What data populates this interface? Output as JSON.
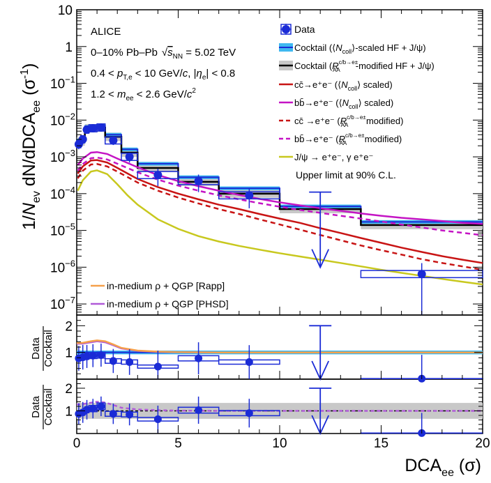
{
  "chart_data": {
    "type": "scatter",
    "experiment": "ALICE",
    "annotations": {
      "system": "0–10% Pb–Pb",
      "energy_prefix": "s",
      "energy_sub": "NN",
      "energy_value": " = 5.02 TeV",
      "pt_cut_a": "0.4 < ",
      "pt_cut_p": "p",
      "pt_cut_sub": "T,e",
      "pt_cut_b": " < 10 GeV/",
      "pt_cut_c": "c",
      "pt_cut_d": ", |",
      "pt_cut_eta": "η",
      "pt_cut_eta_sub": "e",
      "pt_cut_e": "| < 0.8",
      "mass_cut_a": "1.2 < ",
      "mass_cut_m": "m",
      "mass_cut_sub": "ee",
      "mass_cut_b": " < 2.6 GeV/",
      "mass_cut_c": "c",
      "mass_cut_sup": "2",
      "upper_limit": "Upper limit at 90% C.L."
    },
    "axes": {
      "xlabel_main": "DCA",
      "xlabel_sub": "ee",
      "xlabel_unit": " (σ)",
      "ylabel": "1/N_ev dN/dDCA_ee (σ^-1)",
      "ylabel_parts": [
        "1/",
        "N",
        "ev",
        " dN/dDCA",
        "ee",
        " (σ",
        "-1",
        ")"
      ],
      "xlim": [
        0,
        20
      ],
      "xticks": [
        "0",
        "5",
        "10",
        "15",
        "20"
      ],
      "ylim": [
        5e-08,
        10
      ],
      "ylog": true,
      "yticks": [
        {
          "b": "10",
          "e": ""
        },
        {
          "b": "1",
          "e": ""
        },
        {
          "b": "10",
          "e": "−1"
        },
        {
          "b": "10",
          "e": "−2"
        },
        {
          "b": "10",
          "e": "−3"
        },
        {
          "b": "10",
          "e": "−4"
        },
        {
          "b": "10",
          "e": "−5"
        },
        {
          "b": "10",
          "e": "−6"
        },
        {
          "b": "10",
          "e": "−7"
        }
      ],
      "ratio_ylabel_top": "Data",
      "ratio_ylabel_bottom": "Cocktail",
      "ratio_ylim": [
        0,
        2.4
      ],
      "ratio_yticks": [
        "1",
        "2"
      ]
    },
    "legend": {
      "data": "Data",
      "cocktail_ncoll_a": "Cocktail (⟨",
      "cocktail_ncoll_n": "N",
      "cocktail_ncoll_sub": "coll",
      "cocktail_ncoll_b": "⟩-scaled HF + J/ψ)",
      "cocktail_raa_a": "Cocktail (",
      "cocktail_raa_r": "R",
      "cocktail_raa_sup": "c/b→e±",
      "cocktail_raa_sub": "AA",
      "cocktail_raa_b": "-modified HF + J/ψ)",
      "cc_ncoll_a": "cc̄→e⁺e⁻ (⟨",
      "cc_ncoll_n": "N",
      "cc_ncoll_sub": "coll",
      "cc_ncoll_b": "⟩ scaled)",
      "bb_ncoll_a": "bb̄→e⁺e⁻ (⟨",
      "bb_ncoll_n": "N",
      "bb_ncoll_sub": "coll",
      "bb_ncoll_b": "⟩ scaled)",
      "cc_raa_a": "cc̄ →e⁺e⁻ (",
      "cc_raa_r": "R",
      "cc_raa_sup": "c/b→e±",
      "cc_raa_sub": "AA",
      "cc_raa_b": " modified)",
      "bb_raa_a": "bb̄→e⁺e⁻ (",
      "bb_raa_r": "R",
      "bb_raa_sup": "c/b→e±",
      "bb_raa_sub": "AA",
      "bb_raa_b": " modified)",
      "jpsi": "J/ψ → e⁺e⁻, γ e⁺e⁻",
      "rapp": "in-medium ρ + QGP [Rapp]",
      "phsd": "in-medium ρ + QGP [PHSD]"
    },
    "colors": {
      "data": "#1a2bd6",
      "cocktail_ncoll_band": "#3fb8f0",
      "cocktail_raa_band": "#c8c8c8",
      "cc": "#c81414",
      "bb": "#c414c4",
      "jpsi": "#c8c81e",
      "rapp": "#f5a04a",
      "phsd": "#b05ad8"
    },
    "data_points": [
      {
        "x": 0.1,
        "xl": 0.0,
        "xh": 0.2,
        "y": 0.0022,
        "ey": 0.0006,
        "r": 0.78,
        "r2": 0.87
      },
      {
        "x": 0.3,
        "xl": 0.2,
        "xh": 0.4,
        "y": 0.003,
        "ey": 0.0008,
        "r": 0.82,
        "r2": 0.93
      },
      {
        "x": 0.5,
        "xl": 0.4,
        "xh": 0.6,
        "y": 0.0055,
        "ey": 0.0012,
        "r": 0.85,
        "r2": 1.05
      },
      {
        "x": 0.8,
        "xl": 0.6,
        "xh": 1.0,
        "y": 0.006,
        "ey": 0.0013,
        "r": 0.88,
        "r2": 1.1
      },
      {
        "x": 1.2,
        "xl": 1.0,
        "xh": 1.4,
        "y": 0.0063,
        "ey": 0.0014,
        "r": 0.9,
        "r2": 1.2
      },
      {
        "x": 1.8,
        "xl": 1.4,
        "xh": 2.2,
        "y": 0.0028,
        "ey": 0.0007,
        "r": 0.68,
        "r2": 0.87
      },
      {
        "x": 2.6,
        "xl": 2.2,
        "xh": 3.0,
        "y": 0.001,
        "ey": 0.0003,
        "r": 0.64,
        "r2": 0.84
      },
      {
        "x": 4.0,
        "xl": 3.0,
        "xh": 5.0,
        "y": 0.00032,
        "ey": 0.00016,
        "r": 0.47,
        "r2": 0.63
      },
      {
        "x": 6.0,
        "xl": 5.0,
        "xh": 7.0,
        "y": 0.00022,
        "ey": 0.00011,
        "r": 0.78,
        "r2": 1.03
      },
      {
        "x": 8.5,
        "xl": 7.0,
        "xh": 10.0,
        "y": 9e-05,
        "ey": 5e-05,
        "r": 0.64,
        "r2": 0.9
      },
      {
        "x": 17.0,
        "xl": 14.0,
        "xh": 20.0,
        "y": 6.5e-07,
        "ey": 6.4e-07,
        "r": 0.02,
        "r2": 0.02
      }
    ],
    "upper_limit_point": {
      "x": 12.0,
      "y": 0.00011,
      "ratio": 2.0
    },
    "cocktail_bins": [
      {
        "xl": 0.0,
        "xh": 0.4,
        "y": 0.0028
      },
      {
        "xl": 0.4,
        "xh": 1.0,
        "y": 0.0065
      },
      {
        "xl": 1.0,
        "xh": 1.4,
        "y": 0.007
      },
      {
        "xl": 1.4,
        "xh": 2.2,
        "y": 0.004
      },
      {
        "xl": 2.2,
        "xh": 3.0,
        "y": 0.0016
      },
      {
        "xl": 3.0,
        "xh": 5.0,
        "y": 0.00065
      },
      {
        "xl": 5.0,
        "xh": 7.0,
        "y": 0.00028
      },
      {
        "xl": 7.0,
        "xh": 10.0,
        "y": 0.00014
      },
      {
        "xl": 10.0,
        "xh": 14.0,
        "y": 4.5e-05
      },
      {
        "xl": 14.0,
        "xh": 20.0,
        "y": 1.7e-05
      }
    ],
    "cocktail_raa_bins": [
      {
        "xl": 0.0,
        "xh": 0.4,
        "y": 0.0026
      },
      {
        "xl": 0.4,
        "xh": 1.0,
        "y": 0.006
      },
      {
        "xl": 1.0,
        "xh": 1.4,
        "y": 0.0062
      },
      {
        "xl": 1.4,
        "xh": 2.2,
        "y": 0.0035
      },
      {
        "xl": 2.2,
        "xh": 3.0,
        "y": 0.0013
      },
      {
        "xl": 3.0,
        "xh": 5.0,
        "y": 0.0005
      },
      {
        "xl": 5.0,
        "xh": 7.0,
        "y": 0.00021
      },
      {
        "xl": 7.0,
        "xh": 10.0,
        "y": 0.0001
      },
      {
        "xl": 10.0,
        "xh": 14.0,
        "y": 3.8e-05
      },
      {
        "xl": 14.0,
        "xh": 20.0,
        "y": 1.4e-05
      }
    ],
    "curves": {
      "cc_ncoll": [
        [
          0.05,
          0.00035
        ],
        [
          0.3,
          0.00055
        ],
        [
          0.7,
          0.0008
        ],
        [
          1.0,
          0.00082
        ],
        [
          1.5,
          0.0007
        ],
        [
          2,
          0.0005
        ],
        [
          3,
          0.00025
        ],
        [
          4,
          0.00015
        ],
        [
          5,
          0.0001
        ],
        [
          6,
          7e-05
        ],
        [
          7,
          5e-05
        ],
        [
          8,
          3.8e-05
        ],
        [
          9,
          2.8e-05
        ],
        [
          10,
          2.1e-05
        ],
        [
          11,
          1.6e-05
        ],
        [
          12,
          1.15e-05
        ],
        [
          13,
          8.5e-06
        ],
        [
          14,
          6.2e-06
        ],
        [
          15,
          4.6e-06
        ],
        [
          16,
          3.4e-06
        ],
        [
          17,
          2.6e-06
        ],
        [
          18,
          2e-06
        ],
        [
          19,
          1.6e-06
        ],
        [
          20,
          1.3e-06
        ]
      ],
      "cc_raa": [
        [
          0.05,
          0.00026
        ],
        [
          0.3,
          0.00042
        ],
        [
          0.7,
          0.00062
        ],
        [
          1.0,
          0.00064
        ],
        [
          1.5,
          0.00055
        ],
        [
          2,
          0.0004
        ],
        [
          3,
          0.0002
        ],
        [
          4,
          0.00012
        ],
        [
          5,
          7.8e-05
        ],
        [
          6,
          5.4e-05
        ],
        [
          7,
          3.8e-05
        ],
        [
          8,
          2.8e-05
        ],
        [
          9,
          2e-05
        ],
        [
          10,
          1.45e-05
        ],
        [
          11,
          1.05e-05
        ],
        [
          12,
          7.5e-06
        ],
        [
          13,
          5.4e-06
        ],
        [
          14,
          3.9e-06
        ],
        [
          15,
          2.9e-06
        ],
        [
          16,
          2.2e-06
        ],
        [
          17,
          1.65e-06
        ],
        [
          18,
          1.3e-06
        ],
        [
          19,
          1.05e-06
        ],
        [
          20,
          8.5e-07
        ]
      ],
      "bb_ncoll": [
        [
          0.05,
          0.0006
        ],
        [
          0.3,
          0.0009
        ],
        [
          0.7,
          0.0013
        ],
        [
          1.0,
          0.00135
        ],
        [
          1.5,
          0.0012
        ],
        [
          2,
          0.0009
        ],
        [
          3,
          0.00052
        ],
        [
          4,
          0.00032
        ],
        [
          5,
          0.00022
        ],
        [
          6,
          0.00016
        ],
        [
          7,
          0.00012
        ],
        [
          8,
          9.2e-05
        ],
        [
          9,
          7.2e-05
        ],
        [
          10,
          5.8e-05
        ],
        [
          11,
          4.8e-05
        ],
        [
          12,
          4e-05
        ],
        [
          13,
          3.4e-05
        ],
        [
          14,
          2.9e-05
        ],
        [
          15,
          2.5e-05
        ],
        [
          16,
          2.2e-05
        ],
        [
          17,
          2e-05
        ],
        [
          18,
          1.8e-05
        ],
        [
          19,
          1.6e-05
        ],
        [
          20,
          1.5e-05
        ]
      ],
      "bb_raa": [
        [
          0.05,
          0.00042
        ],
        [
          0.3,
          0.00064
        ],
        [
          0.7,
          0.00092
        ],
        [
          1.0,
          0.00096
        ],
        [
          1.5,
          0.00085
        ],
        [
          2,
          0.00065
        ],
        [
          3,
          0.00038
        ],
        [
          4,
          0.00024
        ],
        [
          5,
          0.000165
        ],
        [
          6,
          0.00012
        ],
        [
          7,
          9e-05
        ],
        [
          8,
          7e-05
        ],
        [
          9,
          5.5e-05
        ],
        [
          10,
          4.4e-05
        ],
        [
          11,
          3.6e-05
        ],
        [
          12,
          3e-05
        ],
        [
          13,
          2.5e-05
        ],
        [
          14,
          2.1e-05
        ],
        [
          15,
          1.75e-05
        ],
        [
          16,
          1.45e-05
        ],
        [
          17,
          1.2e-05
        ],
        [
          18,
          1e-05
        ],
        [
          19,
          8.6e-06
        ],
        [
          20,
          7.4e-06
        ]
      ],
      "jpsi": [
        [
          0.05,
          0.00012
        ],
        [
          0.3,
          0.00023
        ],
        [
          0.7,
          0.0004
        ],
        [
          1.0,
          0.00043
        ],
        [
          1.5,
          0.00034
        ],
        [
          2,
          0.00018
        ],
        [
          2.5,
          9e-05
        ],
        [
          3,
          5e-05
        ],
        [
          4,
          2e-05
        ],
        [
          5,
          1.1e-05
        ],
        [
          6,
          7e-06
        ],
        [
          7,
          5e-06
        ],
        [
          8,
          3.8e-06
        ],
        [
          9,
          3e-06
        ],
        [
          10,
          2.4e-06
        ],
        [
          11,
          1.95e-06
        ],
        [
          12,
          1.6e-06
        ],
        [
          13,
          1.3e-06
        ],
        [
          14,
          1.05e-06
        ],
        [
          15,
          8.5e-07
        ],
        [
          16,
          7e-07
        ],
        [
          17,
          5.8e-07
        ],
        [
          18,
          4.8e-07
        ],
        [
          19,
          4e-07
        ],
        [
          20,
          3.4e-07
        ]
      ],
      "ratio_rapp": [
        [
          0.0,
          1.35
        ],
        [
          0.3,
          1.36
        ],
        [
          0.7,
          1.42
        ],
        [
          1.0,
          1.45
        ],
        [
          1.4,
          1.42
        ],
        [
          1.8,
          1.3
        ],
        [
          2.2,
          1.17
        ],
        [
          3.0,
          1.07
        ],
        [
          4.0,
          1.03
        ],
        [
          5.0,
          1.01
        ],
        [
          7.0,
          1.0
        ],
        [
          10.0,
          1.0
        ],
        [
          20.0,
          1.0
        ]
      ],
      "ratio_phsd": [
        [
          0.0,
          1.32
        ],
        [
          0.3,
          1.33
        ],
        [
          0.7,
          1.38
        ],
        [
          1.0,
          1.42
        ],
        [
          1.4,
          1.38
        ],
        [
          1.8,
          1.27
        ],
        [
          2.2,
          1.15
        ],
        [
          3.0,
          1.06
        ],
        [
          4.0,
          1.02
        ],
        [
          5.0,
          1.01
        ],
        [
          7.0,
          1.0
        ],
        [
          10.0,
          1.0
        ],
        [
          20.0,
          1.0
        ]
      ],
      "ratio2_rapp": [
        [
          0.0,
          1.28
        ],
        [
          0.3,
          1.3
        ],
        [
          0.7,
          1.36
        ],
        [
          1.0,
          1.4
        ],
        [
          1.4,
          1.37
        ],
        [
          1.8,
          1.26
        ],
        [
          2.2,
          1.14
        ],
        [
          3.0,
          1.06
        ],
        [
          4.0,
          1.03
        ],
        [
          5.0,
          1.01
        ],
        [
          7.0,
          1.0
        ],
        [
          10.0,
          1.0
        ],
        [
          20.0,
          1.0
        ]
      ]
    },
    "ratio_band_ncoll": [
      0.93,
      1.07
    ],
    "ratio_band_raa": [
      0.65,
      1.35
    ]
  }
}
